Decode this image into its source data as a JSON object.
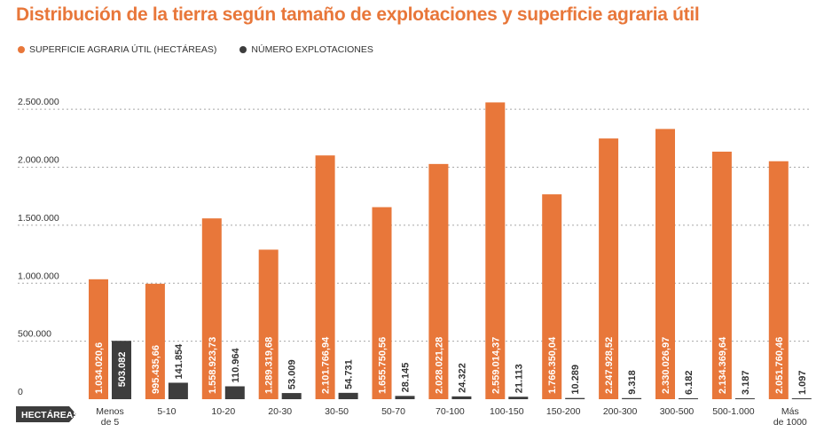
{
  "chart_data": {
    "type": "bar",
    "title": "Distribución de la tierra según tamaño de explotaciones y superficie agraria útil",
    "xlabel": "HECTÁREAS",
    "ylim": [
      0,
      2700000
    ],
    "grid": true,
    "legend_position": "top-left",
    "y_ticks": [
      {
        "value": 0,
        "label": "0"
      },
      {
        "value": 500000,
        "label": "500.000"
      },
      {
        "value": 1000000,
        "label": "1.000.000"
      },
      {
        "value": 1500000,
        "label": "1.500.000"
      },
      {
        "value": 2000000,
        "label": "2.000.000"
      },
      {
        "value": 2500000,
        "label": "2.500.000"
      }
    ],
    "categories": [
      [
        "Menos",
        "de 5"
      ],
      [
        "5-10"
      ],
      [
        "10-20"
      ],
      [
        "20-30"
      ],
      [
        "30-50"
      ],
      [
        "50-70"
      ],
      [
        "70-100"
      ],
      [
        "100-150"
      ],
      [
        "150-200"
      ],
      [
        "200-300"
      ],
      [
        "300-500"
      ],
      [
        "500-1.000"
      ],
      [
        "Más",
        "de 1000"
      ]
    ],
    "series": [
      {
        "name": "SUPERFICIE AGRARIA ÚTIL (HECTÁREAS)",
        "color": "#e8773a",
        "values": [
          1034020.6,
          995435.66,
          1558923.73,
          1289319.68,
          2101766.94,
          1655750.56,
          2028021.28,
          2559014.37,
          1766350.04,
          2247928.52,
          2330026.97,
          2134369.64,
          2051760.46
        ],
        "labels": [
          "1.034.020,6",
          "995.435,66",
          "1.558.923,73",
          "1.289.319,68",
          "2.101.766,94",
          "1.655.750,56",
          "2.028.021,28",
          "2.559.014,37",
          "1.766.350,04",
          "2.247.928,52",
          "2.330.026,97",
          "2.134.369,64",
          "2.051.760,46"
        ]
      },
      {
        "name": "NÚMERO EXPLOTACIONES",
        "color": "#3d3d3d",
        "values": [
          503082,
          141854,
          110964,
          53009,
          54731,
          28145,
          24322,
          21113,
          10289,
          9318,
          6182,
          3187,
          1097
        ],
        "labels": [
          "503.082",
          "141.854",
          "110.964",
          "53.009",
          "54.731",
          "28.145",
          "24.322",
          "21.113",
          "10.289",
          "9.318",
          "6.182",
          "3.187",
          "1.097"
        ]
      }
    ]
  }
}
